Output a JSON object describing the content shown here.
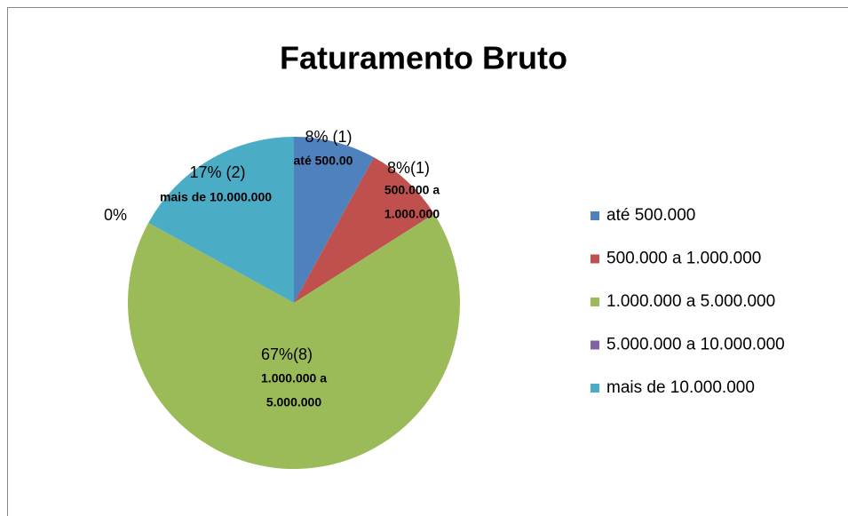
{
  "chart_data": {
    "type": "pie",
    "title": "Faturamento Bruto",
    "categories": [
      "até 500.000",
      "500.000 a 1.000.000",
      "1.000.000 a 5.000.000",
      "5.000.000 a 10.000.000",
      "mais de 10.000.000"
    ],
    "values": [
      8,
      8,
      67,
      0,
      17
    ],
    "value_labels": [
      "8% (1)",
      "8%(1)",
      "67%(8)",
      "0%",
      "17% (2)"
    ],
    "slice_labels": [
      [
        "até 500.00"
      ],
      [
        "500.000 a",
        "1.000.000"
      ],
      [
        "1.000.000 a",
        "5.000.000"
      ],
      null,
      [
        "mais de 10.000.000"
      ]
    ],
    "colors": [
      "#4f81bd",
      "#c0504d",
      "#9bbb59",
      "#8064a2",
      "#4bacc6"
    ],
    "legend": "right"
  }
}
